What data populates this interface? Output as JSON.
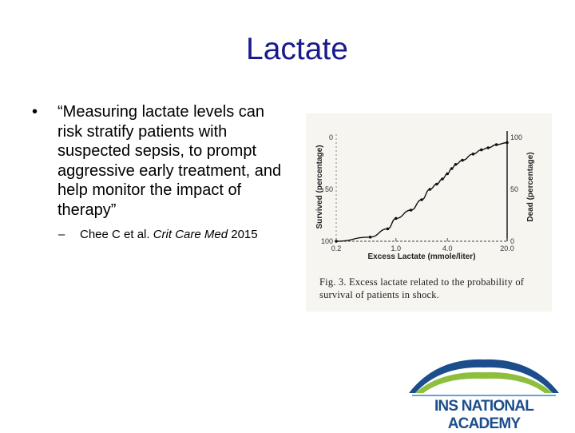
{
  "slide": {
    "title": "Lactate",
    "bullet": "“Measuring lactate levels can risk stratify patients with suspected sepsis, to prompt aggressive early treatment, and help monitor the impact of therapy”",
    "citation": {
      "dash": "–",
      "before": "Chee C et al. ",
      "journal": "Crit Care Med",
      "after": " 2015"
    }
  },
  "figure": {
    "caption": "Fig. 3. Excess lactate related to the probability of survival of patients in shock.",
    "chart_data": {
      "type": "scatter",
      "xlabel": "Excess Lactate (mmole/liter)",
      "ylabel_left": "Survived (percentage)",
      "ylabel_right": "Dead (percentage)",
      "x_ticks": [
        "0.2",
        "1.0",
        "4.0",
        "20.0"
      ],
      "y_left_ticks": [
        "0",
        "50",
        "100"
      ],
      "y_right_ticks": [
        "100",
        "50",
        "0"
      ],
      "x_scale": "log",
      "x_range": [
        0.2,
        20
      ],
      "y_range_dead": [
        0,
        100
      ],
      "series": [
        {
          "x": [
            0.2,
            0.5,
            0.8,
            1.0,
            1.5,
            2.0,
            2.5,
            3.0,
            3.5,
            4.0,
            4.5,
            5.0,
            6.0,
            8.0,
            10.0,
            12.0,
            15.0,
            20.0
          ],
          "y": [
            0,
            4,
            12,
            22,
            30,
            40,
            50,
            55,
            60,
            65,
            70,
            74,
            78,
            84,
            88,
            90,
            93,
            95
          ]
        }
      ],
      "grid": false
    }
  },
  "logo": {
    "text": "INS NATIONAL ACADEMY"
  }
}
